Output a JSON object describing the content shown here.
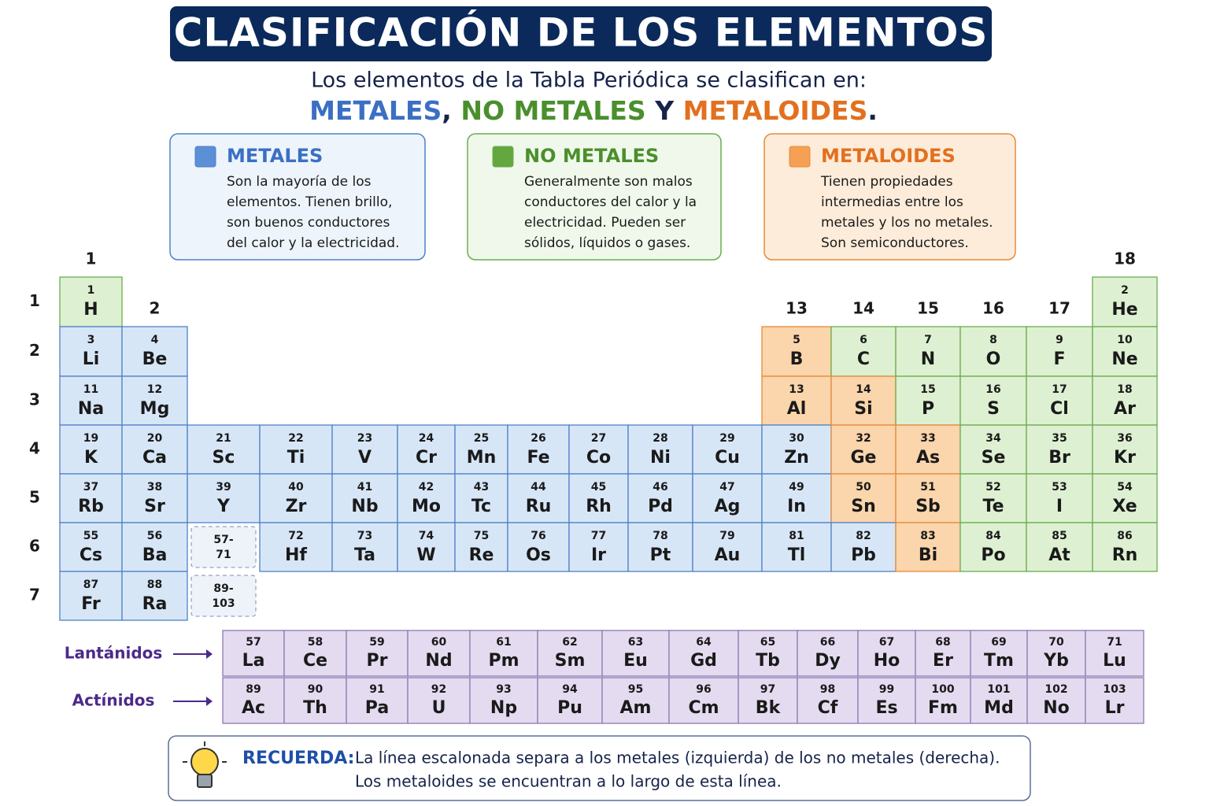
{
  "title": "CLASIFICACIÓN DE LOS ELEMENTOS",
  "subtitle": {
    "line": "Los elementos de la Tabla Periódica se clasifican en:",
    "metales": "METALES",
    "comma": ",",
    "no_metales": "NO METALES",
    "y": "Y",
    "metaloides": "METALOIDES",
    "period": "."
  },
  "classes": {
    "metal": {
      "name": "METALES",
      "description": [
        "Son la mayoría de los",
        "elementos. Tienen brillo,",
        "son buenos conductores",
        "del calor y la electricidad."
      ],
      "color": "#3b6fc4",
      "fill": "#d7e6f7",
      "stroke": "#4d82c6",
      "icon": "#5b8fd6",
      "symbol_color": "#1a1a1a"
    },
    "nonmetal": {
      "name": "NO METALES",
      "description": [
        "Generalmente son malos",
        "conductores del calor y la",
        "electricidad. Pueden ser",
        "sólidos, líquidos o gases."
      ],
      "color": "#4a8f2c",
      "fill": "#def0d2",
      "stroke": "#6aae4c",
      "icon": "#62a83e",
      "symbol_color": "#1a1a1a"
    },
    "metalloid": {
      "name": "METALOIDES",
      "description": [
        "Tienen propiedades",
        "intermedias entre los",
        "metales y los no metales.",
        "Son semiconductores."
      ],
      "color": "#e2701f",
      "fill": "#fbd5ab",
      "stroke": "#e58b3c",
      "icon": "#f5a055",
      "symbol_color": "#b5301a"
    }
  },
  "groups": [
    1,
    2,
    null,
    null,
    null,
    null,
    null,
    null,
    null,
    null,
    null,
    13,
    14,
    15,
    16,
    17,
    18
  ],
  "periods": [
    1,
    2,
    3,
    4,
    5,
    6,
    7
  ],
  "rows": [
    [
      {
        "n": 1,
        "s": "H",
        "c": "nonmetal"
      },
      null,
      null,
      null,
      null,
      null,
      null,
      null,
      null,
      null,
      null,
      null,
      null,
      null,
      null,
      null,
      {
        "n": 2,
        "s": "He",
        "c": "nonmetal"
      }
    ],
    [
      {
        "n": 3,
        "s": "Li",
        "c": "metal"
      },
      {
        "n": 4,
        "s": "Be",
        "c": "metal"
      },
      null,
      null,
      null,
      null,
      null,
      null,
      null,
      null,
      null,
      {
        "n": 5,
        "s": "B",
        "c": "metalloid"
      },
      {
        "n": 6,
        "s": "C",
        "c": "nonmetal"
      },
      {
        "n": 7,
        "s": "N",
        "c": "nonmetal"
      },
      {
        "n": 8,
        "s": "O",
        "c": "nonmetal"
      },
      {
        "n": 9,
        "s": "F",
        "c": "nonmetal"
      },
      {
        "n": 10,
        "s": "Ne",
        "c": "nonmetal"
      }
    ],
    [
      {
        "n": 11,
        "s": "Na",
        "c": "metal"
      },
      {
        "n": 12,
        "s": "Mg",
        "c": "metal"
      },
      null,
      null,
      null,
      null,
      null,
      null,
      null,
      null,
      null,
      {
        "n": 13,
        "s": "Al",
        "c": "metalloid"
      },
      {
        "n": 14,
        "s": "Si",
        "c": "metalloid"
      },
      {
        "n": 15,
        "s": "P",
        "c": "nonmetal"
      },
      {
        "n": 16,
        "s": "S",
        "c": "nonmetal"
      },
      {
        "n": 17,
        "s": "Cl",
        "c": "nonmetal"
      },
      {
        "n": 18,
        "s": "Ar",
        "c": "nonmetal"
      }
    ],
    [
      {
        "n": 19,
        "s": "K",
        "c": "metal"
      },
      {
        "n": 20,
        "s": "Ca",
        "c": "metal"
      },
      {
        "n": 21,
        "s": "Sc",
        "c": "metal"
      },
      {
        "n": 22,
        "s": "Ti",
        "c": "metal"
      },
      {
        "n": 23,
        "s": "V",
        "c": "metal"
      },
      {
        "n": 24,
        "s": "Cr",
        "c": "metal"
      },
      {
        "n": 25,
        "s": "Mn",
        "c": "metal"
      },
      {
        "n": 26,
        "s": "Fe",
        "c": "metal"
      },
      {
        "n": 27,
        "s": "Co",
        "c": "metal"
      },
      {
        "n": 28,
        "s": "Ni",
        "c": "metal"
      },
      {
        "n": 29,
        "s": "Cu",
        "c": "metal"
      },
      {
        "n": 30,
        "s": "Zn",
        "c": "metal"
      },
      {
        "n": 32,
        "s": "Ge",
        "c": "metalloid"
      },
      {
        "n": 33,
        "s": "As",
        "c": "metalloid"
      },
      {
        "n": 34,
        "s": "Se",
        "c": "nonmetal"
      },
      {
        "n": 35,
        "s": "Br",
        "c": "nonmetal"
      },
      {
        "n": 36,
        "s": "Kr",
        "c": "nonmetal"
      }
    ],
    [
      {
        "n": 37,
        "s": "Rb",
        "c": "metal"
      },
      {
        "n": 38,
        "s": "Sr",
        "c": "metal"
      },
      {
        "n": 39,
        "s": "Y",
        "c": "metal"
      },
      {
        "n": 40,
        "s": "Zr",
        "c": "metal"
      },
      {
        "n": 41,
        "s": "Nb",
        "c": "metal"
      },
      {
        "n": 42,
        "s": "Mo",
        "c": "metal"
      },
      {
        "n": 43,
        "s": "Tc",
        "c": "metal"
      },
      {
        "n": 44,
        "s": "Ru",
        "c": "metal"
      },
      {
        "n": 45,
        "s": "Rh",
        "c": "metal"
      },
      {
        "n": 46,
        "s": "Pd",
        "c": "metal"
      },
      {
        "n": 47,
        "s": "Ag",
        "c": "metal"
      },
      {
        "n": 49,
        "s": "In",
        "c": "metal"
      },
      {
        "n": 50,
        "s": "Sn",
        "c": "metalloid"
      },
      {
        "n": 51,
        "s": "Sb",
        "c": "metalloid"
      },
      {
        "n": 52,
        "s": "Te",
        "c": "nonmetal"
      },
      {
        "n": 53,
        "s": "I",
        "c": "nonmetal"
      },
      {
        "n": 54,
        "s": "Xe",
        "c": "nonmetal"
      }
    ],
    [
      {
        "n": 55,
        "s": "Cs",
        "c": "metal"
      },
      {
        "n": 56,
        "s": "Ba",
        "c": "metal"
      },
      {
        "range": [
          "57-",
          "71"
        ]
      },
      {
        "n": 72,
        "s": "Hf",
        "c": "metal"
      },
      {
        "n": 73,
        "s": "Ta",
        "c": "metal"
      },
      {
        "n": 74,
        "s": "W",
        "c": "metal"
      },
      {
        "n": 75,
        "s": "Re",
        "c": "metal"
      },
      {
        "n": 76,
        "s": "Os",
        "c": "metal"
      },
      {
        "n": 77,
        "s": "Ir",
        "c": "metal"
      },
      {
        "n": 78,
        "s": "Pt",
        "c": "metal"
      },
      {
        "n": 79,
        "s": "Au",
        "c": "metal"
      },
      {
        "n": 81,
        "s": "Tl",
        "c": "metal"
      },
      {
        "n": 82,
        "s": "Pb",
        "c": "metal"
      },
      {
        "n": 83,
        "s": "Bi",
        "c": "metalloid"
      },
      {
        "n": 84,
        "s": "Po",
        "c": "nonmetal"
      },
      {
        "n": 85,
        "s": "At",
        "c": "nonmetal"
      },
      {
        "n": 86,
        "s": "Rn",
        "c": "nonmetal"
      }
    ],
    [
      {
        "n": 87,
        "s": "Fr",
        "c": "metal"
      },
      {
        "n": 88,
        "s": "Ra",
        "c": "metal"
      },
      {
        "range": [
          "89-",
          "103"
        ]
      }
    ]
  ],
  "f_block": {
    "label_color": "#4b2a8a",
    "fill": "#e4dbf0",
    "stroke": "#8c7ab3",
    "rows": [
      {
        "name": "Lantánidos",
        "elements": [
          {
            "n": 57,
            "s": "La"
          },
          {
            "n": 58,
            "s": "Ce"
          },
          {
            "n": 59,
            "s": "Pr"
          },
          {
            "n": 60,
            "s": "Nd"
          },
          {
            "n": 61,
            "s": "Pm"
          },
          {
            "n": 62,
            "s": "Sm"
          },
          {
            "n": 63,
            "s": "Eu"
          },
          {
            "n": 64,
            "s": "Gd"
          },
          {
            "n": 65,
            "s": "Tb"
          },
          {
            "n": 66,
            "s": "Dy"
          },
          {
            "n": 67,
            "s": "Ho"
          },
          {
            "n": 68,
            "s": "Er"
          },
          {
            "n": 69,
            "s": "Tm"
          },
          {
            "n": 70,
            "s": "Yb"
          },
          {
            "n": 71,
            "s": "Lu"
          }
        ]
      },
      {
        "name": "Actínidos",
        "elements": [
          {
            "n": 89,
            "s": "Ac"
          },
          {
            "n": 90,
            "s": "Th"
          },
          {
            "n": 91,
            "s": "Pa"
          },
          {
            "n": 92,
            "s": "U"
          },
          {
            "n": 93,
            "s": "Np"
          },
          {
            "n": 94,
            "s": "Pu"
          },
          {
            "n": 95,
            "s": "Am"
          },
          {
            "n": 96,
            "s": "Cm"
          },
          {
            "n": 97,
            "s": "Bk"
          },
          {
            "n": 98,
            "s": "Cf"
          },
          {
            "n": 99,
            "s": "Es"
          },
          {
            "n": 100,
            "s": "Fm"
          },
          {
            "n": 101,
            "s": "Md"
          },
          {
            "n": 102,
            "s": "No"
          },
          {
            "n": 103,
            "s": "Lr"
          }
        ]
      }
    ]
  },
  "note": {
    "label": "RECUERDA:",
    "lines": [
      "La línea escalonada separa a los metales (izquierda) de los no metales (derecha).",
      "Los metaloides se encuentran a lo largo de esta línea."
    ]
  }
}
